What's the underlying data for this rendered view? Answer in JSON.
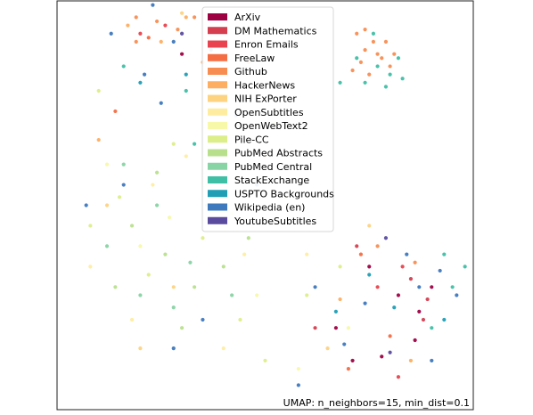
{
  "chart_data": {
    "type": "scatter",
    "title": "",
    "xlabel": "",
    "ylabel": "",
    "annotation": "UMAP: n_neighbors=15, min_dist=0.1",
    "axes_visible": false,
    "grid": false,
    "legend_position": "top-center",
    "seed": 20240611,
    "series": [
      {
        "name": "ArXiv",
        "color": "#9e0142",
        "points": [
          [
            0.75,
            0.35
          ],
          [
            0.82,
            0.28
          ],
          [
            0.87,
            0.24
          ],
          [
            0.71,
            0.12
          ],
          [
            0.86,
            0.17
          ],
          [
            0.9,
            0.3
          ],
          [
            0.67,
            0.2
          ],
          [
            0.3,
            0.87
          ],
          [
            0.78,
            0.13
          ]
        ]
      },
      {
        "name": "DM Mathematics",
        "color": "#d53e4f",
        "points": [
          [
            0.85,
            0.32
          ],
          [
            0.88,
            0.22
          ],
          [
            0.72,
            0.4
          ],
          [
            0.62,
            0.2
          ],
          [
            0.89,
            0.27
          ]
        ]
      },
      {
        "name": "Enron Emails",
        "color": "#e8434e",
        "points": [
          [
            0.26,
            0.94
          ],
          [
            0.83,
            0.35
          ],
          [
            0.77,
            0.3
          ],
          [
            0.2,
            0.92
          ],
          [
            0.82,
            0.08
          ]
        ]
      },
      {
        "name": "FreeLaw",
        "color": "#f46d43",
        "points": [
          [
            0.73,
            0.38
          ],
          [
            0.22,
            0.91
          ],
          [
            0.8,
            0.18
          ],
          [
            0.14,
            0.73
          ],
          [
            0.7,
            0.1
          ]
        ]
      },
      {
        "name": "Github",
        "color": "#f88d52",
        "points": [
          [
            0.74,
            0.88
          ],
          [
            0.76,
            0.9
          ],
          [
            0.78,
            0.86
          ],
          [
            0.72,
            0.92
          ],
          [
            0.8,
            0.84
          ],
          [
            0.75,
            0.82
          ],
          [
            0.77,
            0.87
          ],
          [
            0.73,
            0.85
          ],
          [
            0.79,
            0.9
          ],
          [
            0.81,
            0.87
          ],
          [
            0.74,
            0.93
          ],
          [
            0.71,
            0.83
          ],
          [
            0.19,
            0.96
          ],
          [
            0.24,
            0.95
          ],
          [
            0.29,
            0.93
          ],
          [
            0.19,
            0.9
          ],
          [
            0.33,
            0.96
          ],
          [
            0.86,
            0.36
          ],
          [
            0.77,
            0.4
          ]
        ]
      },
      {
        "name": "HackerNews",
        "color": "#fdae61",
        "points": [
          [
            0.25,
            0.9
          ],
          [
            0.31,
            0.96
          ],
          [
            0.17,
            0.94
          ],
          [
            0.35,
            0.85
          ],
          [
            0.1,
            0.66
          ],
          [
            0.46,
            0.85
          ],
          [
            0.68,
            0.27
          ],
          [
            0.85,
            0.12
          ]
        ]
      },
      {
        "name": "NIH ExPorter",
        "color": "#fdd382",
        "points": [
          [
            0.3,
            0.97
          ],
          [
            0.5,
            0.62
          ],
          [
            0.12,
            0.5
          ],
          [
            0.28,
            0.3
          ],
          [
            0.65,
            0.15
          ],
          [
            0.2,
            0.15
          ],
          [
            0.75,
            0.45
          ]
        ]
      },
      {
        "name": "OpenSubtitles",
        "color": "#feeda1",
        "points": [
          [
            0.23,
            0.55
          ],
          [
            0.31,
            0.62
          ],
          [
            0.45,
            0.38
          ],
          [
            0.55,
            0.52
          ],
          [
            0.4,
            0.15
          ],
          [
            0.08,
            0.35
          ],
          [
            0.6,
            0.38
          ],
          [
            0.18,
            0.22
          ],
          [
            0.39,
            0.7
          ]
        ]
      },
      {
        "name": "OpenWebText2",
        "color": "#f7f9a9",
        "points": [
          [
            0.27,
            0.47
          ],
          [
            0.36,
            0.55
          ],
          [
            0.48,
            0.28
          ],
          [
            0.58,
            0.1
          ],
          [
            0.12,
            0.6
          ],
          [
            0.2,
            0.4
          ],
          [
            0.42,
            0.48
          ],
          [
            0.7,
            0.2
          ],
          [
            0.52,
            0.7
          ]
        ]
      },
      {
        "name": "Pile-CC",
        "color": "#dcee8a",
        "points": [
          [
            0.15,
            0.52
          ],
          [
            0.22,
            0.33
          ],
          [
            0.35,
            0.42
          ],
          [
            0.44,
            0.22
          ],
          [
            0.6,
            0.28
          ],
          [
            0.1,
            0.78
          ],
          [
            0.28,
            0.65
          ],
          [
            0.08,
            0.45
          ],
          [
            0.5,
            0.12
          ],
          [
            0.68,
            0.35
          ]
        ]
      },
      {
        "name": "PubMed Abstracts",
        "color": "#b8e08c",
        "points": [
          [
            0.18,
            0.45
          ],
          [
            0.26,
            0.38
          ],
          [
            0.33,
            0.3
          ],
          [
            0.14,
            0.3
          ],
          [
            0.24,
            0.58
          ],
          [
            0.4,
            0.35
          ],
          [
            0.46,
            0.42
          ],
          [
            0.3,
            0.2
          ]
        ]
      },
      {
        "name": "PubMed Central",
        "color": "#88d4a4",
        "points": [
          [
            0.12,
            0.4
          ],
          [
            0.2,
            0.28
          ],
          [
            0.24,
            0.5
          ],
          [
            0.32,
            0.36
          ],
          [
            0.16,
            0.6
          ],
          [
            0.36,
            0.5
          ],
          [
            0.28,
            0.25
          ],
          [
            0.42,
            0.28
          ]
        ]
      },
      {
        "name": "StackExchange",
        "color": "#3fbfa5",
        "points": [
          [
            0.77,
            0.84
          ],
          [
            0.8,
            0.82
          ],
          [
            0.74,
            0.8
          ],
          [
            0.82,
            0.86
          ],
          [
            0.72,
            0.86
          ],
          [
            0.79,
            0.79
          ],
          [
            0.76,
            0.92
          ],
          [
            0.83,
            0.81
          ],
          [
            0.68,
            0.8
          ],
          [
            0.33,
            0.65
          ],
          [
            0.93,
            0.38
          ],
          [
            0.9,
            0.2
          ],
          [
            0.95,
            0.3
          ],
          [
            0.16,
            0.84
          ],
          [
            0.31,
            0.78
          ],
          [
            0.98,
            0.35
          ]
        ]
      },
      {
        "name": "USPTO Backgrounds",
        "color": "#1f9eb5",
        "points": [
          [
            0.31,
            0.82
          ],
          [
            0.67,
            0.24
          ],
          [
            0.75,
            0.33
          ],
          [
            0.2,
            0.8
          ],
          [
            0.81,
            0.25
          ],
          [
            0.93,
            0.22
          ]
        ]
      },
      {
        "name": "Wikipedia (en)",
        "color": "#3e78bd",
        "points": [
          [
            0.21,
            0.82
          ],
          [
            0.13,
            0.92
          ],
          [
            0.25,
            0.75
          ],
          [
            0.37,
            0.88
          ],
          [
            0.16,
            0.55
          ],
          [
            0.07,
            0.5
          ],
          [
            0.48,
            0.55
          ],
          [
            0.62,
            0.3
          ],
          [
            0.87,
            0.3
          ],
          [
            0.92,
            0.34
          ],
          [
            0.96,
            0.28
          ],
          [
            0.84,
            0.38
          ],
          [
            0.28,
            0.15
          ],
          [
            0.35,
            0.22
          ],
          [
            0.9,
            0.12
          ],
          [
            0.69,
            0.16
          ],
          [
            0.58,
            0.06
          ],
          [
            0.23,
            0.99
          ],
          [
            0.28,
            0.9
          ],
          [
            0.43,
            0.72
          ],
          [
            0.74,
            0.26
          ]
        ]
      },
      {
        "name": "YoutubeSubtitles",
        "color": "#5b4b9f",
        "points": [
          [
            0.3,
            0.92
          ],
          [
            0.79,
            0.42
          ],
          [
            0.8,
            0.14
          ]
        ]
      }
    ]
  }
}
